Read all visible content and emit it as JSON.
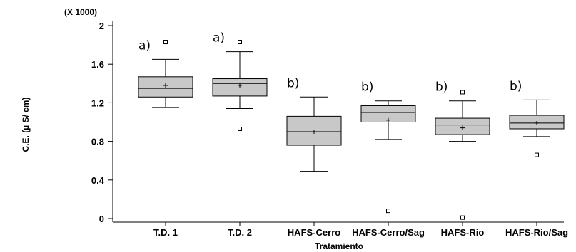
{
  "chart_data": {
    "type": "boxplot",
    "scale_note": "(X 1000)",
    "xlabel": "Tratamiento",
    "ylabel": "C.E. (µ S/ cm)",
    "ylim": [
      0,
      2
    ],
    "yticks": [
      "0",
      "0.4",
      "0.8",
      "1.2",
      "1.6",
      "2"
    ],
    "ytick_values": [
      0,
      0.4,
      0.8,
      1.2,
      1.6,
      2.0
    ],
    "grid": false,
    "categories": [
      "T.D. 1",
      "T.D. 2",
      "HAFS-Cerro",
      "HAFS-Cerro/Sag",
      "HAFS-Rio",
      "HAFS-Rio/Sag"
    ],
    "boxes": [
      {
        "label": "T.D. 1",
        "letter": "a)",
        "min": 1.15,
        "q1": 1.26,
        "median": 1.35,
        "q3": 1.47,
        "max": 1.65,
        "mean": 1.38,
        "outliers": [
          1.83
        ]
      },
      {
        "label": "T.D. 2",
        "letter": "a)",
        "min": 1.14,
        "q1": 1.27,
        "median": 1.4,
        "q3": 1.45,
        "max": 1.73,
        "mean": 1.38,
        "outliers": [
          1.83,
          0.93
        ]
      },
      {
        "label": "HAFS-Cerro",
        "letter": "b)",
        "min": 0.49,
        "q1": 0.76,
        "median": 0.9,
        "q3": 1.06,
        "max": 1.26,
        "mean": 0.9,
        "outliers": []
      },
      {
        "label": "HAFS-Cerro/Sag",
        "letter": "b)",
        "min": 0.82,
        "q1": 1.0,
        "median": 1.1,
        "q3": 1.17,
        "max": 1.22,
        "mean": 1.02,
        "outliers": [
          0.08
        ]
      },
      {
        "label": "HAFS-Rio",
        "letter": "b)",
        "min": 0.8,
        "q1": 0.87,
        "median": 0.97,
        "q3": 1.04,
        "max": 1.22,
        "mean": 0.94,
        "outliers": [
          1.31,
          0.01
        ]
      },
      {
        "label": "HAFS-Rio/Sag",
        "letter": "b)",
        "min": 0.85,
        "q1": 0.93,
        "median": 0.99,
        "q3": 1.07,
        "max": 1.23,
        "mean": 0.99,
        "outliers": [
          0.66
        ]
      }
    ],
    "colors": {
      "box_fill": "#c8c8c8",
      "stroke": "#000000",
      "background": "#ffffff"
    }
  }
}
